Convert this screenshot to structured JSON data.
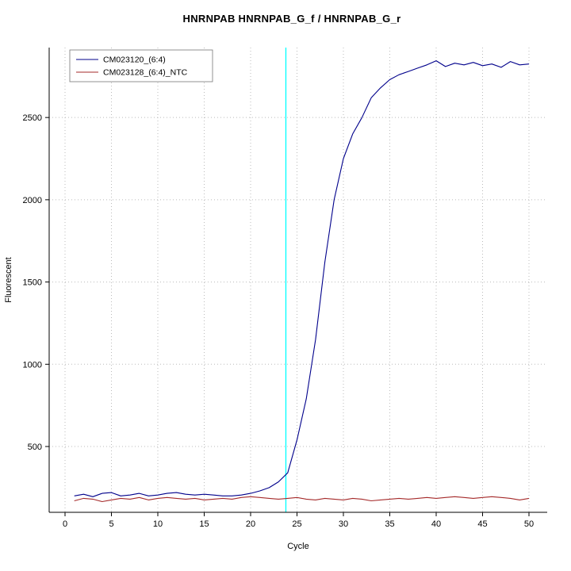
{
  "chart_data": {
    "type": "line",
    "title": "HNRNPAB  HNRNPAB_G_f / HNRNPAB_G_r",
    "xlabel": "Cycle",
    "ylabel": "Fluorescent",
    "xlim": [
      -1.7,
      52
    ],
    "ylim": [
      100,
      2925
    ],
    "x_ticks": [
      0,
      5,
      10,
      15,
      20,
      25,
      30,
      35,
      40,
      45,
      50
    ],
    "y_ticks": [
      500,
      1000,
      1500,
      2000,
      2500
    ],
    "grid": {
      "show": true,
      "style": "dotted",
      "color": "#BBBBBB"
    },
    "threshold_line": {
      "x": 23.8,
      "color": "#00FFFF"
    },
    "legend": {
      "position": "top-left",
      "border_color": "#777777"
    },
    "x": [
      1,
      2,
      3,
      4,
      5,
      6,
      7,
      8,
      9,
      10,
      11,
      12,
      13,
      14,
      15,
      16,
      17,
      18,
      19,
      20,
      21,
      22,
      23,
      24,
      25,
      26,
      27,
      28,
      29,
      30,
      31,
      32,
      33,
      34,
      35,
      36,
      37,
      38,
      39,
      40,
      41,
      42,
      43,
      44,
      45,
      46,
      47,
      48,
      49,
      50
    ],
    "series": [
      {
        "name": "CM023120_(6:4)",
        "color": "#00008B",
        "values": [
          200,
          210,
          195,
          215,
          220,
          200,
          205,
          215,
          200,
          205,
          215,
          220,
          210,
          205,
          210,
          205,
          200,
          200,
          205,
          215,
          230,
          250,
          285,
          340,
          540,
          790,
          1150,
          1620,
          2000,
          2250,
          2400,
          2500,
          2620,
          2680,
          2730,
          2760,
          2780,
          2800,
          2820,
          2845,
          2810,
          2830,
          2820,
          2835,
          2815,
          2825,
          2805,
          2840,
          2820,
          2825
        ]
      },
      {
        "name": "CM023128_(6:4)_NTC",
        "color": "#A52A2A",
        "values": [
          170,
          185,
          180,
          165,
          175,
          185,
          180,
          190,
          175,
          185,
          190,
          185,
          180,
          185,
          175,
          180,
          185,
          180,
          190,
          195,
          190,
          185,
          180,
          185,
          190,
          180,
          175,
          185,
          180,
          175,
          185,
          180,
          170,
          175,
          180,
          185,
          180,
          185,
          190,
          185,
          190,
          195,
          190,
          185,
          190,
          195,
          190,
          185,
          175,
          185
        ]
      }
    ]
  }
}
